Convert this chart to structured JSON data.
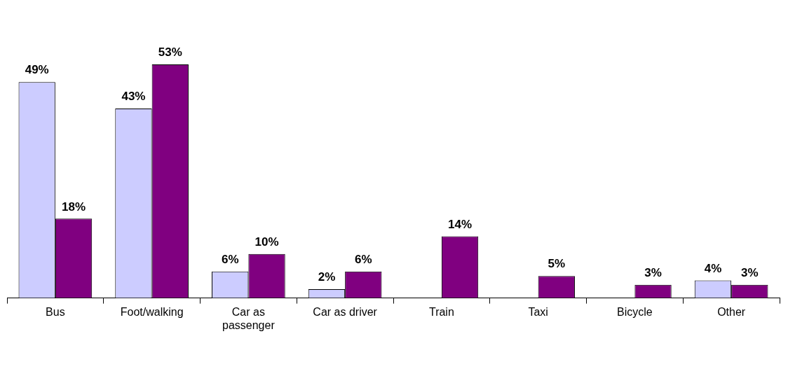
{
  "chart_data": {
    "type": "bar",
    "categories": [
      "Bus",
      "Foot/walking",
      "Car as passenger",
      "Car as driver",
      "Train",
      "Taxi",
      "Bicycle",
      "Other"
    ],
    "series": [
      {
        "color": "#ccccff",
        "values": [
          49,
          43,
          6,
          2,
          null,
          null,
          null,
          4
        ],
        "value_labels": [
          "49%",
          "43%",
          "6%",
          "2%",
          null,
          null,
          null,
          "4%"
        ]
      },
      {
        "color": "#800080",
        "values": [
          18,
          53,
          10,
          6,
          14,
          5,
          3,
          3
        ],
        "value_labels": [
          "18%",
          "53%",
          "10%",
          "6%",
          "14%",
          "5%",
          "3%",
          "3%"
        ]
      }
    ],
    "grid": false,
    "legend": false
  }
}
